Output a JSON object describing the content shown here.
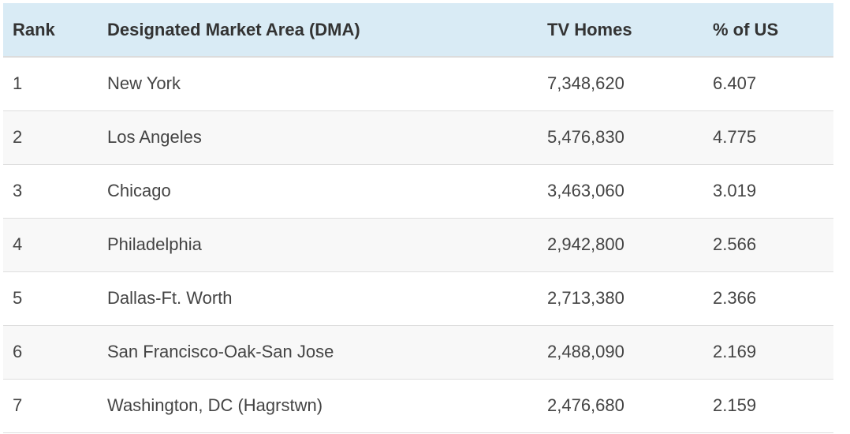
{
  "table": {
    "headers": {
      "rank": "Rank",
      "dma": "Designated Market Area (DMA)",
      "tv_homes": "TV Homes",
      "pct_us": "% of US"
    },
    "rows": [
      {
        "rank": "1",
        "dma": "New York",
        "tv_homes": "7,348,620",
        "pct_us": "6.407"
      },
      {
        "rank": "2",
        "dma": "Los Angeles",
        "tv_homes": "5,476,830",
        "pct_us": "4.775"
      },
      {
        "rank": "3",
        "dma": "Chicago",
        "tv_homes": "3,463,060",
        "pct_us": "3.019"
      },
      {
        "rank": "4",
        "dma": "Philadelphia",
        "tv_homes": "2,942,800",
        "pct_us": "2.566"
      },
      {
        "rank": "5",
        "dma": "Dallas-Ft. Worth",
        "tv_homes": "2,713,380",
        "pct_us": "2.366"
      },
      {
        "rank": "6",
        "dma": "San Francisco-Oak-San Jose",
        "tv_homes": "2,488,090",
        "pct_us": "2.169"
      },
      {
        "rank": "7",
        "dma": "Washington, DC (Hagrstwn)",
        "tv_homes": "2,476,680",
        "pct_us": "2.159"
      }
    ]
  },
  "colors": {
    "header_bg": "#d9ebf5",
    "row_alt_bg": "#f8f8f8",
    "text": "#444444"
  }
}
